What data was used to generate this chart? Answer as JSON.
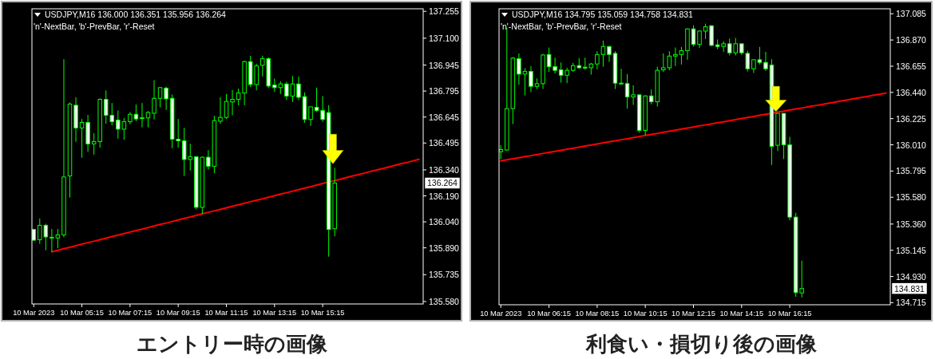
{
  "chart_data": [
    {
      "type": "candlestick",
      "title": "USDJPY,M16 136.000 136.351 135.956 136.264",
      "subtitle": "'n'-NextBar, 'b'-PrevBar, 'r'-Reset",
      "color": "#00ff00",
      "categories": [
        "10 Mar 2023",
        null,
        null,
        null,
        null,
        null,
        null,
        null,
        "10 Mar 05:15",
        null,
        null,
        null,
        null,
        null,
        null,
        null,
        "10 Mar 07:15",
        null,
        null,
        null,
        null,
        null,
        null,
        null,
        "10 Mar 09:15",
        null,
        null,
        null,
        null,
        null,
        null,
        null,
        "10 Mar 11:15",
        null,
        null,
        null,
        null,
        null,
        null,
        null,
        "10 Mar 13:15",
        null,
        null,
        null,
        null,
        null,
        null,
        null,
        "10 Mar 15:15",
        null,
        null,
        null,
        null,
        null,
        null,
        null,
        null,
        null,
        null,
        null,
        null,
        null,
        null,
        null,
        null
      ],
      "ohlc": [
        [
          135.996,
          136.0,
          135.931,
          135.934
        ],
        [
          135.937,
          136.06,
          135.913,
          136.02
        ],
        [
          136.02,
          136.029,
          135.876,
          135.953
        ],
        [
          135.947,
          135.999,
          135.867,
          135.951
        ],
        [
          135.947,
          135.999,
          135.888,
          135.965
        ],
        [
          135.965,
          136.979,
          135.95,
          136.299
        ],
        [
          136.305,
          136.729,
          136.18,
          136.72
        ],
        [
          136.713,
          136.759,
          136.502,
          136.582
        ],
        [
          136.582,
          136.634,
          136.41,
          136.614
        ],
        [
          136.614,
          136.657,
          136.444,
          136.49
        ],
        [
          136.49,
          136.551,
          136.428,
          136.503
        ],
        [
          136.503,
          136.753,
          136.468,
          136.747
        ],
        [
          136.747,
          136.799,
          136.606,
          136.655
        ],
        [
          136.655,
          136.726,
          136.598,
          136.618
        ],
        [
          136.628,
          136.683,
          136.52,
          136.575
        ],
        [
          136.575,
          136.64,
          136.514,
          136.618
        ],
        [
          136.618,
          136.674,
          136.603,
          136.661
        ],
        [
          136.661,
          136.717,
          136.621,
          136.634
        ],
        [
          136.64,
          136.726,
          136.585,
          136.641
        ],
        [
          136.64,
          136.68,
          136.585,
          136.671
        ],
        [
          136.667,
          136.858,
          136.631,
          136.753
        ],
        [
          136.753,
          136.818,
          136.701,
          136.815
        ],
        [
          136.812,
          136.821,
          136.686,
          136.75
        ],
        [
          136.753,
          136.775,
          136.465,
          136.517
        ],
        [
          136.517,
          136.634,
          136.468,
          136.508
        ],
        [
          136.508,
          136.583,
          136.305,
          136.4
        ],
        [
          136.4,
          136.491,
          136.336,
          136.416
        ],
        [
          136.416,
          136.419,
          136.112,
          136.124
        ],
        [
          136.124,
          136.416,
          136.085,
          136.413
        ],
        [
          136.413,
          136.454,
          136.342,
          136.361
        ],
        [
          136.361,
          136.652,
          136.321,
          136.624
        ],
        [
          136.621,
          136.759,
          136.606,
          136.643
        ],
        [
          136.643,
          136.778,
          136.634,
          136.735
        ],
        [
          136.732,
          136.802,
          136.655,
          136.747
        ],
        [
          136.747,
          136.809,
          136.713,
          136.784
        ],
        [
          136.784,
          136.971,
          136.713,
          136.965
        ],
        [
          136.965,
          136.999,
          136.818,
          136.833
        ],
        [
          136.833,
          136.953,
          136.799,
          136.94
        ],
        [
          136.944,
          136.999,
          136.879,
          136.982
        ],
        [
          136.982,
          136.99,
          136.812,
          136.824
        ],
        [
          136.83,
          136.867,
          136.79,
          136.815
        ],
        [
          136.815,
          136.851,
          136.778,
          136.836
        ],
        [
          136.836,
          136.848,
          136.744,
          136.766
        ],
        [
          136.766,
          136.882,
          136.732,
          136.836
        ],
        [
          136.836,
          136.879,
          136.744,
          136.759
        ],
        [
          136.763,
          136.787,
          136.612,
          136.631
        ],
        [
          136.631,
          136.704,
          136.594,
          136.704
        ],
        [
          136.701,
          136.815,
          136.674,
          136.683
        ],
        [
          136.683,
          136.766,
          136.618,
          136.631
        ],
        [
          136.671,
          136.713,
          135.839,
          135.996
        ],
        [
          136.0,
          136.351,
          135.956,
          136.264
        ],
        null,
        null,
        null,
        null,
        null,
        null,
        null,
        null,
        null,
        null,
        null,
        null,
        null,
        null
      ],
      "series": [
        {
          "type": "line",
          "color": "#ff0000",
          "values": [
            null,
            null,
            null,
            135.867,
            135.876,
            135.885,
            135.893,
            135.902,
            135.911,
            135.92,
            135.928,
            135.937,
            135.946,
            135.955,
            135.963,
            135.972,
            135.981,
            135.99,
            135.998,
            136.007,
            136.016,
            136.025,
            136.033,
            136.042,
            136.051,
            136.06,
            136.068,
            136.077,
            136.086,
            136.095,
            136.103,
            136.112,
            136.121,
            136.13,
            136.138,
            136.147,
            136.156,
            136.165,
            136.173,
            136.182,
            136.191,
            136.2,
            136.208,
            136.217,
            136.226,
            136.235,
            136.243,
            136.252,
            136.261,
            136.27,
            136.278,
            136.287,
            136.296,
            136.305,
            136.313,
            136.322,
            136.331,
            136.34,
            136.348,
            136.357,
            136.366,
            136.375,
            136.383,
            136.392,
            136.401
          ]
        }
      ],
      "ylim": [
        135.566,
        137.27
      ],
      "yticks": [
        137.255,
        {
          "value": 137.1,
          "label": "137.100"
        },
        136.945,
        136.795,
        136.645,
        136.495,
        {
          "value": 136.34,
          "label": "136.340"
        },
        {
          "value": 136.19,
          "label": "136.190"
        },
        {
          "value": 136.04,
          "label": "136.040"
        },
        {
          "value": 135.89,
          "label": "135.890"
        },
        135.735,
        {
          "value": 135.58,
          "label": "135.580"
        }
      ],
      "annotations": [
        {
          "text": "136.264",
          "y": 136.264
        },
        "エントリー時の画像"
      ]
    },
    {
      "type": "candlestick",
      "title": "USDJPY,M16 134.795 135.059 134.758 134.831",
      "subtitle": "'n'-NextBar, 'b'-PrevBar, 'r'-Reset",
      "color": "#00ff00",
      "categories": [
        "10 Mar 2023",
        null,
        null,
        null,
        null,
        null,
        null,
        null,
        "10 Mar 06:15",
        null,
        null,
        null,
        null,
        null,
        null,
        null,
        "10 Mar 08:15",
        null,
        null,
        null,
        null,
        null,
        null,
        null,
        "10 Mar 10:15",
        null,
        null,
        null,
        null,
        null,
        null,
        null,
        "10 Mar 12:15",
        null,
        null,
        null,
        null,
        null,
        null,
        null,
        "10 Mar 14:15",
        null,
        null,
        null,
        null,
        null,
        null,
        null,
        "10 Mar 16:15",
        null,
        null,
        null,
        null,
        null,
        null,
        null,
        null,
        null,
        null,
        null,
        null,
        null,
        null,
        null,
        null
      ],
      "ohlc": [
        [
          135.954,
          136.006,
          135.893,
          135.971
        ],
        [
          135.967,
          136.97,
          135.962,
          136.307
        ],
        [
          136.307,
          136.73,
          136.18,
          136.721
        ],
        [
          136.717,
          136.76,
          136.503,
          136.59
        ],
        [
          136.59,
          136.638,
          136.416,
          136.612
        ],
        [
          136.612,
          136.656,
          136.442,
          136.49
        ],
        [
          136.49,
          136.555,
          136.468,
          136.512
        ],
        [
          136.512,
          136.756,
          136.468,
          136.747
        ],
        [
          136.751,
          136.808,
          136.608,
          136.651
        ],
        [
          136.651,
          136.725,
          136.595,
          136.621
        ],
        [
          136.625,
          136.686,
          136.52,
          136.581
        ],
        [
          136.581,
          136.642,
          136.516,
          136.621
        ],
        [
          136.621,
          136.682,
          136.608,
          136.66
        ],
        [
          136.66,
          136.721,
          136.634,
          136.642
        ],
        [
          136.647,
          136.725,
          136.629,
          136.64
        ],
        [
          136.642,
          136.682,
          136.586,
          136.673
        ],
        [
          136.673,
          136.778,
          136.629,
          136.751
        ],
        [
          136.751,
          136.865,
          136.651,
          136.817
        ],
        [
          136.817,
          136.817,
          136.69,
          136.751
        ],
        [
          136.76,
          136.778,
          136.468,
          136.516
        ],
        [
          136.516,
          136.634,
          136.503,
          136.512
        ],
        [
          136.512,
          136.59,
          136.307,
          136.403
        ],
        [
          136.403,
          136.499,
          136.337,
          136.42
        ],
        [
          136.42,
          136.42,
          136.11,
          136.128
        ],
        [
          136.128,
          136.416,
          136.089,
          136.411
        ],
        [
          136.411,
          136.464,
          136.342,
          136.363
        ],
        [
          136.363,
          136.651,
          136.324,
          136.621
        ],
        [
          136.625,
          136.76,
          136.608,
          136.642
        ],
        [
          136.642,
          136.778,
          136.621,
          136.738
        ],
        [
          136.738,
          136.808,
          136.656,
          136.751
        ],
        [
          136.751,
          136.813,
          136.669,
          136.782
        ],
        [
          136.782,
          136.965,
          136.708,
          136.961
        ],
        [
          136.961,
          136.991,
          136.817,
          136.834
        ],
        [
          136.834,
          136.948,
          136.804,
          136.943
        ],
        [
          136.943,
          137.004,
          136.878,
          136.978
        ],
        [
          136.987,
          136.991,
          136.817,
          136.826
        ],
        [
          136.83,
          136.874,
          136.795,
          136.817
        ],
        [
          136.817,
          136.86,
          136.773,
          136.839
        ],
        [
          136.839,
          136.882,
          136.743,
          136.765
        ],
        [
          136.765,
          136.887,
          136.743,
          136.839
        ],
        [
          136.839,
          136.839,
          136.747,
          136.765
        ],
        [
          136.76,
          136.782,
          136.612,
          136.634
        ],
        [
          136.634,
          136.708,
          136.599,
          136.708
        ],
        [
          136.708,
          136.813,
          136.669,
          136.686
        ],
        [
          136.686,
          136.773,
          136.616,
          136.634
        ],
        [
          136.664,
          136.712,
          135.845,
          135.997
        ],
        [
          136.006,
          136.268,
          135.958,
          136.268
        ],
        [
          136.268,
          136.268,
          135.893,
          136.01
        ],
        [
          136.01,
          136.076,
          135.391,
          135.417
        ],
        [
          135.417,
          135.452,
          134.763,
          134.798
        ],
        [
          134.795,
          135.059,
          134.758,
          134.831
        ],
        null,
        null,
        null,
        null,
        null,
        null,
        null,
        null,
        null,
        null,
        null,
        null,
        null,
        null
      ],
      "series": [
        {
          "type": "line",
          "color": "#ff0000",
          "values": [
            135.878,
            135.887,
            135.895,
            135.904,
            135.913,
            135.921,
            135.93,
            135.939,
            135.948,
            135.956,
            135.965,
            135.974,
            135.982,
            135.991,
            136.0,
            136.008,
            136.017,
            136.026,
            136.034,
            136.043,
            136.052,
            136.06,
            136.069,
            136.078,
            136.087,
            136.095,
            136.104,
            136.113,
            136.121,
            136.13,
            136.139,
            136.147,
            136.156,
            136.165,
            136.173,
            136.182,
            136.191,
            136.199,
            136.208,
            136.217,
            136.226,
            136.234,
            136.243,
            136.252,
            136.26,
            136.269,
            136.278,
            136.286,
            136.295,
            136.304,
            136.312,
            136.321,
            136.33,
            136.338,
            136.347,
            136.356,
            136.365,
            136.373,
            136.382,
            136.391,
            136.399,
            136.408,
            136.417,
            136.425,
            136.434
          ]
        }
      ],
      "ylim": [
        134.698,
        137.126
      ],
      "yticks": [
        137.085,
        {
          "value": 136.87,
          "label": "136.870"
        },
        136.655,
        {
          "value": 136.44,
          "label": "136.440"
        },
        136.225,
        {
          "value": 136.01,
          "label": "136.010"
        },
        135.795,
        {
          "value": 135.58,
          "label": "135.580"
        },
        {
          "value": 135.36,
          "label": "135.360"
        },
        135.145,
        {
          "value": 134.93,
          "label": "134.930"
        },
        134.715
      ],
      "annotations": [
        {
          "text": "134.831",
          "y": 134.831
        },
        "利食い・損切り後の画像"
      ]
    }
  ]
}
